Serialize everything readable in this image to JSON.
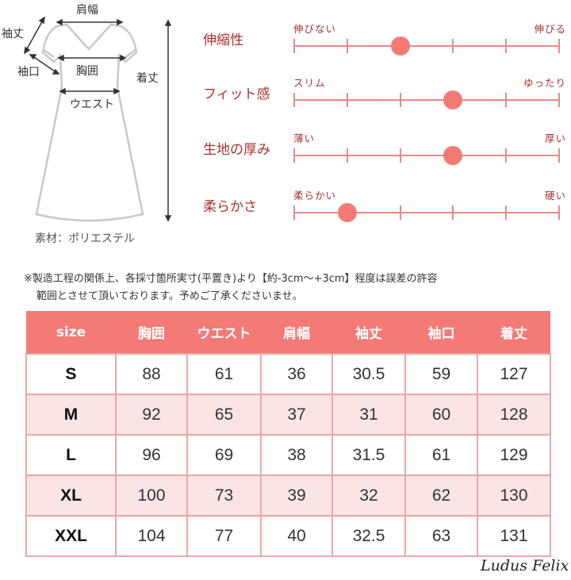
{
  "diagram": {
    "labels": {
      "shoulder": "肩幅",
      "sleeve_length": "袖丈",
      "cuff": "袖口",
      "chest": "胸囲",
      "waist": "ウエスト",
      "length": "着丈"
    },
    "material": "素材：ポリエステル"
  },
  "scales": {
    "max": 5,
    "items": [
      {
        "name": "伸縮性",
        "left": "伸びない",
        "right": "伸びる",
        "value": 2
      },
      {
        "name": "フィット感",
        "left": "スリム",
        "right": "ゆったり",
        "value": 3
      },
      {
        "name": "生地の厚み",
        "left": "薄い",
        "right": "厚い",
        "value": 3
      },
      {
        "name": "柔らかさ",
        "left": "柔らかい",
        "right": "硬い",
        "value": 1
      }
    ],
    "color": "#f47a76"
  },
  "note": {
    "line1": "※製造工程の関係上、各採寸箇所実寸(平置き)より【約-3cm～+3cm】程度は誤差の許容",
    "line2": "範囲とさせて頂いております。予めご了承くださいませ。"
  },
  "table": {
    "headers": [
      "size",
      "胸囲",
      "ウエスト",
      "肩幅",
      "袖丈",
      "袖口",
      "着丈"
    ],
    "rows": [
      [
        "S",
        "88",
        "61",
        "36",
        "30.5",
        "59",
        "127"
      ],
      [
        "M",
        "92",
        "65",
        "37",
        "31",
        "60",
        "128"
      ],
      [
        "L",
        "96",
        "69",
        "38",
        "31.5",
        "61",
        "129"
      ],
      [
        "XL",
        "100",
        "73",
        "39",
        "32",
        "62",
        "130"
      ],
      [
        "XXL",
        "104",
        "77",
        "40",
        "32.5",
        "63",
        "131"
      ]
    ],
    "header_color": "#f47a76",
    "stripe_color": "#fbe4e4"
  },
  "brand": "Ludus Felix"
}
